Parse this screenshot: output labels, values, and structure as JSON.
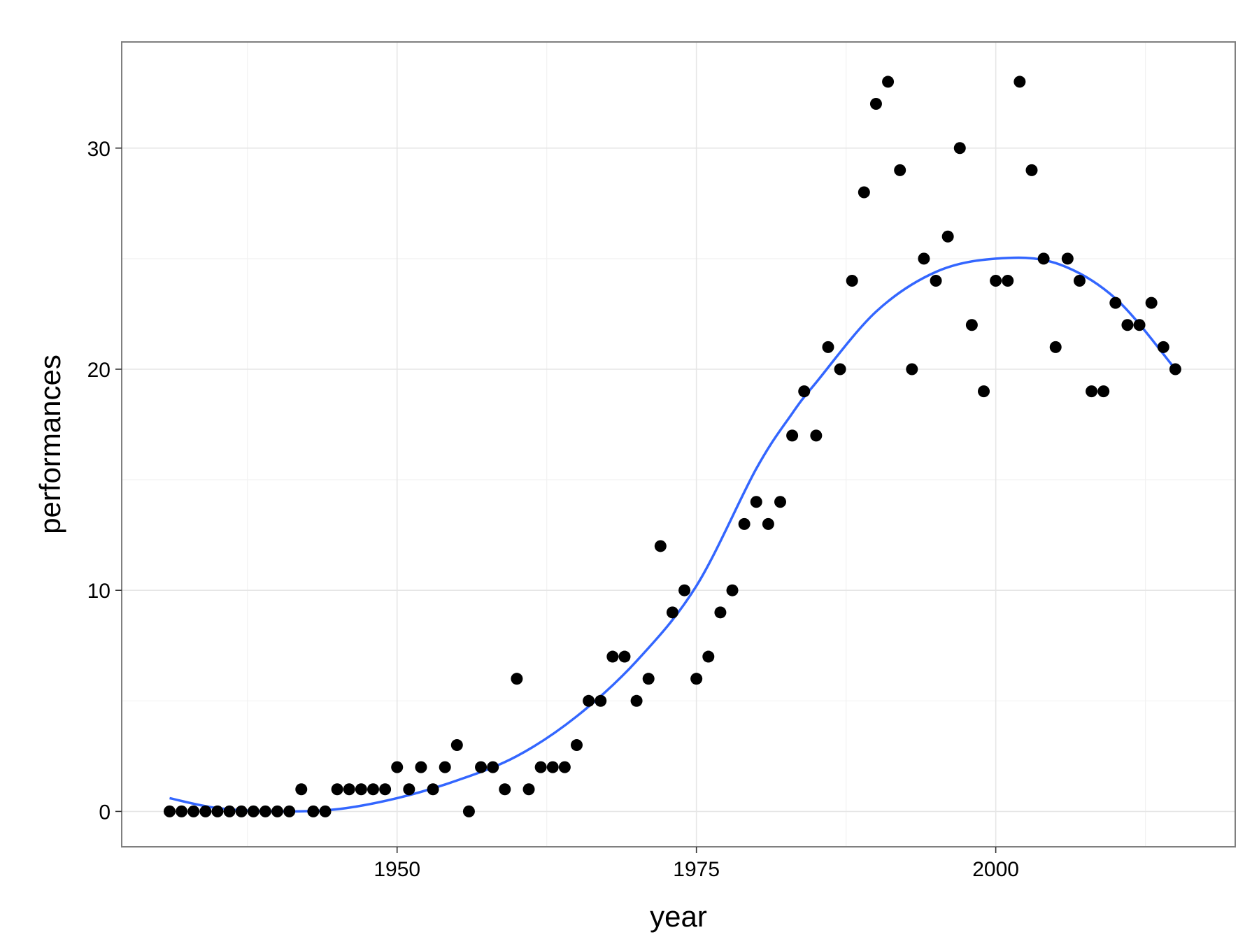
{
  "chart_data": {
    "type": "scatter",
    "title": "",
    "xlabel": "year",
    "ylabel": "performances",
    "xlim": [
      1927,
      2020
    ],
    "ylim": [
      -1.6,
      34.8
    ],
    "xticks": [
      1950,
      1975,
      2000
    ],
    "xtick_labels": [
      "1950",
      "1975",
      "2000"
    ],
    "yticks": [
      0,
      10,
      20,
      30
    ],
    "ytick_labels": [
      "0",
      "10",
      "20",
      "30"
    ],
    "grid": true,
    "legend": "none",
    "colors": {
      "points": "#000000",
      "smooth": "#3366ff",
      "panel_border": "#7f7f7f",
      "grid": "#e6e6e6"
    },
    "series": [
      {
        "type": "scatter",
        "x": [
          1931,
          1932,
          1933,
          1934,
          1935,
          1936,
          1937,
          1938,
          1939,
          1940,
          1941,
          1942,
          1943,
          1944,
          1945,
          1946,
          1947,
          1948,
          1949,
          1950,
          1951,
          1952,
          1953,
          1954,
          1955,
          1956,
          1957,
          1958,
          1959,
          1960,
          1961,
          1962,
          1963,
          1964,
          1965,
          1966,
          1967,
          1968,
          1969,
          1970,
          1971,
          1972,
          1973,
          1974,
          1975,
          1976,
          1977,
          1978,
          1979,
          1980,
          1981,
          1982,
          1983,
          1984,
          1985,
          1986,
          1987,
          1988,
          1989,
          1990,
          1991,
          1992,
          1993,
          1994,
          1995,
          1996,
          1997,
          1998,
          1999,
          2000,
          2001,
          2002,
          2003,
          2004,
          2005,
          2006,
          2007,
          2008,
          2009,
          2010,
          2011,
          2012,
          2013,
          2014,
          2015
        ],
        "y": [
          0,
          0,
          0,
          0,
          0,
          0,
          0,
          0,
          0,
          0,
          0,
          1,
          0,
          0,
          1,
          1,
          1,
          1,
          1,
          2,
          1,
          2,
          1,
          2,
          3,
          0,
          2,
          2,
          1,
          6,
          1,
          2,
          2,
          2,
          3,
          5,
          5,
          7,
          7,
          5,
          6,
          12,
          9,
          10,
          6,
          7,
          9,
          10,
          13,
          14,
          13,
          14,
          17,
          19,
          17,
          21,
          20,
          24,
          28,
          32,
          33,
          29,
          20,
          25,
          24,
          26,
          30,
          22,
          19,
          24,
          24,
          33,
          29,
          25,
          21,
          25,
          24,
          19,
          19,
          23,
          22,
          22,
          23,
          21,
          20
        ]
      },
      {
        "type": "line",
        "x": [
          1931,
          1935,
          1940,
          1945,
          1950,
          1955,
          1960,
          1965,
          1970,
          1975,
          1980,
          1983,
          1985,
          1990,
          1995,
          2000,
          2005,
          2010,
          2015
        ],
        "y": [
          0.6,
          0.15,
          0.0,
          0.1,
          0.6,
          1.4,
          2.5,
          4.3,
          6.8,
          10.2,
          15.5,
          18.0,
          19.4,
          22.6,
          24.4,
          25.0,
          24.8,
          23.2,
          20.0
        ]
      }
    ]
  }
}
